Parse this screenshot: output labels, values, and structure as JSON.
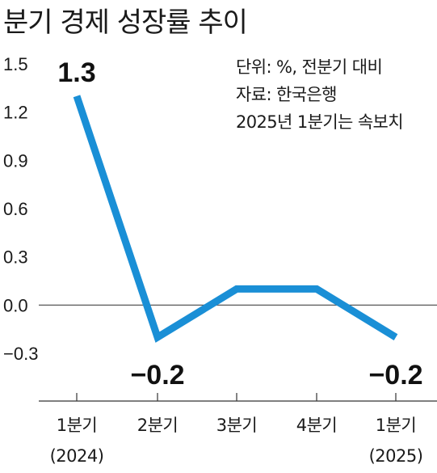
{
  "header": {
    "title": "분기 경제 성장률 추이"
  },
  "notes": [
    "단위: %, 전분기 대비",
    "자료: 한국은행",
    "2025년 1분기는 속보치"
  ],
  "colors": {
    "line": "#1a8fd6",
    "axis": "#333333",
    "zero_line": "#444444"
  },
  "chart_data": {
    "type": "line",
    "title": "분기 경제 성장률 추이",
    "xlabel": "",
    "ylabel": "",
    "categories": [
      [
        "1분기",
        "(2024)"
      ],
      [
        "2분기"
      ],
      [
        "3분기"
      ],
      [
        "4분기"
      ],
      [
        "1분기",
        "(2025)"
      ]
    ],
    "values": [
      1.3,
      -0.2,
      0.1,
      0.1,
      -0.2
    ],
    "data_labels": {
      "0": "1.3",
      "1": "−0.2",
      "4": "−0.2"
    },
    "yticks": [
      1.5,
      1.2,
      0.9,
      0.6,
      0.3,
      0.0,
      -0.3
    ],
    "ytick_labels": [
      "1.5",
      "1.2",
      "0.9",
      "0.6",
      "0.3",
      "0.0",
      "−0.3"
    ],
    "ylim": [
      -0.3,
      1.5
    ],
    "grid": false
  }
}
